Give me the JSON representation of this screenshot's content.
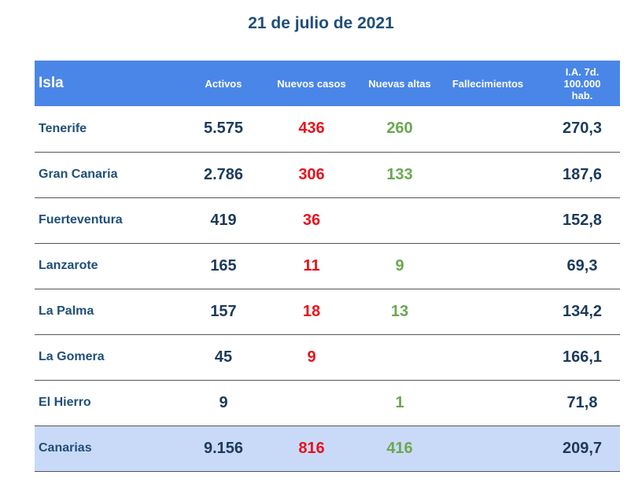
{
  "title": "21 de julio de 2021",
  "colors": {
    "header_bg": "#4A86E8",
    "total_bg": "#C9DAF8",
    "nuevos_casos": "#E8121C",
    "nuevas_altas": "#6AA84F",
    "text": "#1C3A5C"
  },
  "headers": {
    "isla": "Isla",
    "activos": "Activos",
    "nuevos_casos": "Nuevos casos",
    "nuevas_altas": "Nuevas altas",
    "fallecimientos": "Fallecimientos",
    "ia_line1": "I.A. 7d.",
    "ia_line2": "100.000",
    "ia_line3": "hab."
  },
  "rows": [
    {
      "isla": "Tenerife",
      "activos": "5.575",
      "nuevos_casos": "436",
      "nuevas_altas": "260",
      "fallecimientos": "",
      "ia": "270,3"
    },
    {
      "isla": "Gran Canaria",
      "activos": "2.786",
      "nuevos_casos": "306",
      "nuevas_altas": "133",
      "fallecimientos": "",
      "ia": "187,6"
    },
    {
      "isla": "Fuerteventura",
      "activos": "419",
      "nuevos_casos": "36",
      "nuevas_altas": "",
      "fallecimientos": "",
      "ia": "152,8"
    },
    {
      "isla": "Lanzarote",
      "activos": "165",
      "nuevos_casos": "11",
      "nuevas_altas": "9",
      "fallecimientos": "",
      "ia": "69,3"
    },
    {
      "isla": "La Palma",
      "activos": "157",
      "nuevos_casos": "18",
      "nuevas_altas": "13",
      "fallecimientos": "",
      "ia": "134,2"
    },
    {
      "isla": "La Gomera",
      "activos": "45",
      "nuevos_casos": "9",
      "nuevas_altas": "",
      "fallecimientos": "",
      "ia": "166,1"
    },
    {
      "isla": "El Hierro",
      "activos": "9",
      "nuevos_casos": "",
      "nuevas_altas": "1",
      "fallecimientos": "",
      "ia": "71,8"
    }
  ],
  "total": {
    "isla": "Canarias",
    "activos": "9.156",
    "nuevos_casos": "816",
    "nuevas_altas": "416",
    "fallecimientos": "",
    "ia": "209,7"
  }
}
